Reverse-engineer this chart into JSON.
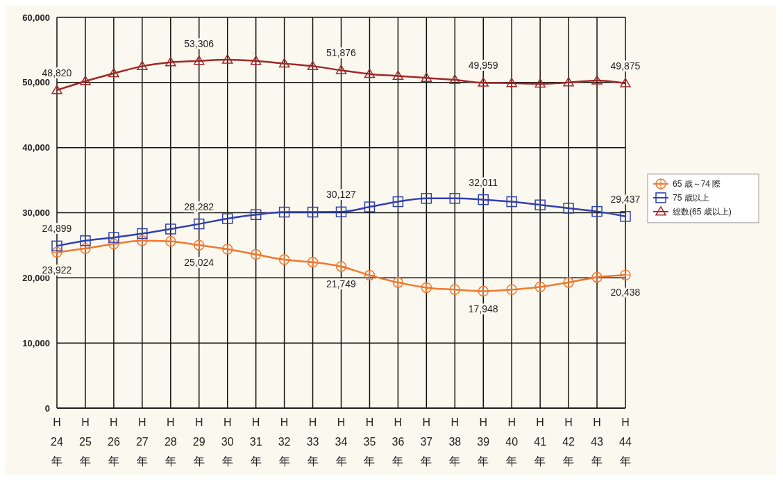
{
  "chart_data": {
    "type": "line",
    "categories": [
      "H24年",
      "H25年",
      "H26年",
      "H27年",
      "H28年",
      "H29年",
      "H30年",
      "H31年",
      "H32年",
      "H33年",
      "H34年",
      "H35年",
      "H36年",
      "H37年",
      "H38年",
      "H39年",
      "H40年",
      "H41年",
      "H42年",
      "H43年",
      "H44年"
    ],
    "ylim": [
      0,
      60000
    ],
    "yticks": [
      {
        "value": 0,
        "label": "0"
      },
      {
        "value": 10000,
        "label": "10,000"
      },
      {
        "value": 20000,
        "label": "20,000"
      },
      {
        "value": 30000,
        "label": "30,000"
      },
      {
        "value": 40000,
        "label": "40,000"
      },
      {
        "value": 50000,
        "label": "50,000"
      },
      {
        "value": 60000,
        "label": "60,000"
      }
    ],
    "grid": true,
    "legend": "right",
    "series": [
      {
        "name": "65 歳～74 際",
        "color": "#f07830",
        "marker": "circle",
        "values": [
          23922,
          24500,
          25200,
          25700,
          25600,
          25024,
          24400,
          23600,
          22800,
          22400,
          21749,
          20400,
          19300,
          18500,
          18200,
          17948,
          18200,
          18600,
          19300,
          20100,
          20438
        ],
        "value_labels": [
          "23,922",
          null,
          null,
          null,
          null,
          "25,024",
          null,
          null,
          null,
          null,
          "21,749",
          null,
          null,
          null,
          null,
          "17,948",
          null,
          null,
          null,
          null,
          "20,438"
        ]
      },
      {
        "name": "75 歳以上",
        "color": "#3040b0",
        "marker": "square",
        "values": [
          24899,
          25700,
          26200,
          26800,
          27500,
          28282,
          29100,
          29700,
          30100,
          30100,
          30127,
          30900,
          31700,
          32200,
          32200,
          32011,
          31700,
          31200,
          30700,
          30200,
          29437
        ],
        "value_labels": [
          "24,899",
          null,
          null,
          null,
          null,
          "28,282",
          null,
          null,
          null,
          null,
          "30,127",
          null,
          null,
          null,
          null,
          "32,011",
          null,
          null,
          null,
          null,
          "29,437"
        ]
      },
      {
        "name": "総数(65 歳以上)",
        "color": "#a02828",
        "marker": "triangle",
        "values": [
          48820,
          50200,
          51400,
          52500,
          53100,
          53306,
          53500,
          53300,
          52900,
          52500,
          51876,
          51300,
          51000,
          50700,
          50400,
          49959,
          49900,
          49800,
          50000,
          50300,
          49875
        ],
        "value_labels": [
          "48,820",
          null,
          null,
          null,
          null,
          "53,306",
          null,
          null,
          null,
          null,
          "51,876",
          null,
          null,
          null,
          null,
          "49,959",
          null,
          null,
          null,
          null,
          "49,875"
        ]
      }
    ]
  }
}
